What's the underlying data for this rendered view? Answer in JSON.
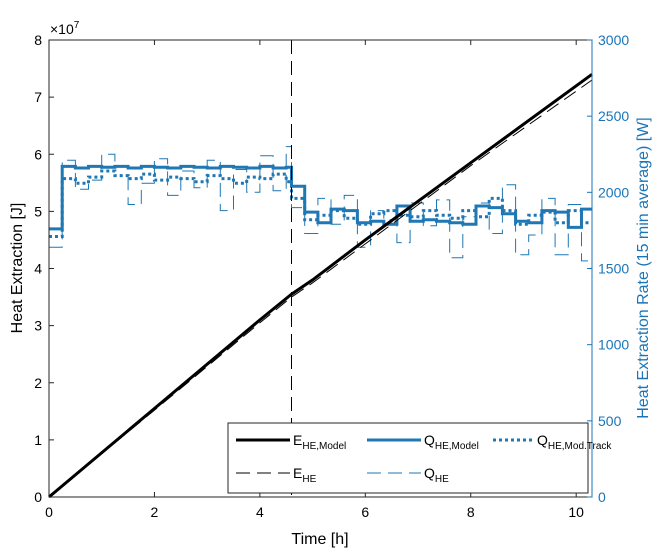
{
  "colors": {
    "black": "#000000",
    "blue": "#1f77b4",
    "blue_axis": "#1a75b8"
  },
  "chart_data": {
    "type": "line",
    "xlabel": "Time [h]",
    "ylabel_left": "Heat Extraction [J]",
    "ylabel_right": "Heat Extraction Rate (15 min average) [W]",
    "left_multiplier": "×10",
    "left_multiplier_exp": "7",
    "xlim": [
      0,
      10.3
    ],
    "ylim_left": [
      0,
      8
    ],
    "ylim_right": [
      0,
      3000
    ],
    "x_ticks": [
      "0",
      "2",
      "4",
      "6",
      "8",
      "10"
    ],
    "y_left_ticks": [
      "0",
      "1",
      "2",
      "3",
      "4",
      "5",
      "6",
      "7",
      "8"
    ],
    "y_right_ticks": [
      "0",
      "500",
      "1000",
      "1500",
      "2000",
      "2500",
      "3000"
    ],
    "vline_x": 4.6,
    "grid": false,
    "legend_position": "bottom-right",
    "legend": [
      {
        "main": "E",
        "sub": "HE,Model"
      },
      {
        "main": "Q",
        "sub": "HE,Model"
      },
      {
        "main": "Q",
        "sub": "HE,Mod.Track"
      },
      {
        "main": "E",
        "sub": "HE"
      },
      {
        "main": "Q",
        "sub": "HE"
      }
    ],
    "series": [
      {
        "axis": "left",
        "style": "solid-black-thick",
        "x": [
          0,
          2,
          4,
          4.6,
          5,
          6,
          8,
          10.3
        ],
        "y": [
          0,
          1.55,
          3.1,
          3.55,
          3.8,
          4.5,
          5.85,
          7.4
        ]
      },
      {
        "axis": "left",
        "style": "dashed-black-thin",
        "x": [
          0,
          2,
          4,
          4.6,
          5,
          6,
          8,
          10.3
        ],
        "y": [
          0,
          1.52,
          3.05,
          3.5,
          3.75,
          4.43,
          5.8,
          7.3
        ]
      },
      {
        "axis": "right",
        "style": "solid-blue-thick",
        "step_width": 0.25,
        "x": [
          0,
          0.25,
          0.5,
          0.75,
          1,
          1.25,
          1.5,
          1.75,
          2,
          2.25,
          2.5,
          2.75,
          3,
          3.25,
          3.5,
          3.75,
          4,
          4.25,
          4.5,
          4.6,
          4.85,
          5.1,
          5.35,
          5.6,
          5.85,
          6.1,
          6.35,
          6.6,
          6.85,
          7.1,
          7.35,
          7.6,
          7.85,
          8.1,
          8.35,
          8.6,
          8.85,
          9.1,
          9.35,
          9.6,
          9.85,
          10.1
        ],
        "y": [
          1760,
          2170,
          2160,
          2170,
          2165,
          2170,
          2160,
          2170,
          2165,
          2160,
          2170,
          2165,
          2160,
          2170,
          2165,
          2160,
          2170,
          2160,
          2165,
          2040,
          1870,
          1800,
          1890,
          1880,
          1800,
          1810,
          1790,
          1910,
          1810,
          1820,
          1810,
          1800,
          1790,
          1910,
          1900,
          1860,
          1810,
          1800,
          1880,
          1870,
          1770,
          1890
        ]
      },
      {
        "axis": "right",
        "style": "dotted-blue",
        "step_width": 0.25,
        "x": [
          0,
          0.25,
          0.5,
          0.75,
          1,
          1.25,
          1.5,
          1.75,
          2,
          2.25,
          2.5,
          2.75,
          3,
          3.25,
          3.5,
          3.75,
          4,
          4.25,
          4.5,
          4.6,
          4.85,
          5.1,
          5.35,
          5.6,
          5.85,
          6.1,
          6.35,
          6.6,
          6.85,
          7.1,
          7.35,
          7.6,
          7.85,
          8.1,
          8.35,
          8.6,
          8.85,
          9.1,
          9.35,
          9.6,
          9.85,
          10.1
        ],
        "y": [
          1710,
          2090,
          2060,
          2100,
          2140,
          2110,
          2090,
          2120,
          2080,
          2100,
          2090,
          2070,
          2110,
          2090,
          2060,
          2100,
          2090,
          2120,
          2070,
          1960,
          1820,
          1850,
          1880,
          1830,
          1790,
          1860,
          1880,
          1850,
          1840,
          1880,
          1850,
          1830,
          1880,
          1840,
          1960,
          1880,
          1790,
          1850,
          1870,
          1800,
          1880,
          1800
        ]
      },
      {
        "axis": "right",
        "style": "dashed-blue-thin",
        "step_width": 0.25,
        "x": [
          0,
          0.25,
          0.5,
          0.75,
          1,
          1.25,
          1.5,
          1.75,
          2,
          2.25,
          2.5,
          2.75,
          3,
          3.25,
          3.5,
          3.75,
          4,
          4.25,
          4.5,
          4.6,
          4.85,
          5.1,
          5.35,
          5.6,
          5.85,
          6.1,
          6.35,
          6.6,
          6.85,
          7.1,
          7.35,
          7.6,
          7.85,
          8.1,
          8.35,
          8.6,
          8.85,
          9.1,
          9.35,
          9.6,
          9.85,
          10.1
        ],
        "y": [
          1640,
          2210,
          2020,
          2080,
          2250,
          2170,
          1920,
          2060,
          2220,
          1980,
          2140,
          2030,
          2210,
          1880,
          2150,
          2000,
          2240,
          2010,
          2300,
          1900,
          1730,
          1960,
          1790,
          1980,
          1640,
          1880,
          1820,
          1670,
          1930,
          1780,
          1950,
          1570,
          1840,
          1930,
          1730,
          2050,
          1590,
          1720,
          1960,
          1590,
          1920,
          1550
        ]
      }
    ]
  }
}
